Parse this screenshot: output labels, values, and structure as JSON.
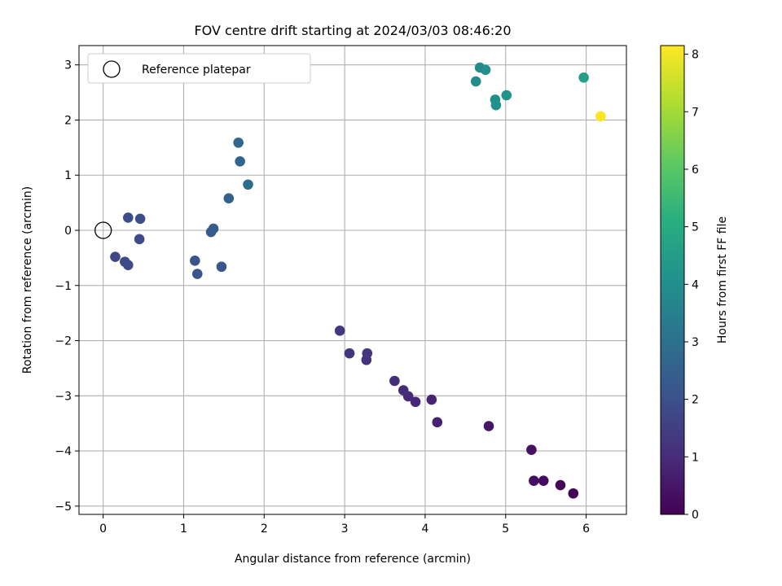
{
  "chart_data": {
    "type": "scatter",
    "title": "FOV centre drift starting at 2024/03/03 08:46:20",
    "xlabel": "Angular distance from reference (arcmin)",
    "ylabel": "Rotation from reference (arcmin)",
    "xlim": [
      -0.3,
      6.5
    ],
    "ylim": [
      -5.15,
      3.35
    ],
    "xticks": [
      0,
      1,
      2,
      3,
      4,
      5,
      6
    ],
    "yticks": [
      -5,
      -4,
      -3,
      -2,
      -1,
      0,
      1,
      2,
      3
    ],
    "grid": true,
    "legend": {
      "position": "top-left",
      "entries": [
        "Reference platepar"
      ]
    },
    "reference": {
      "x": 0,
      "y": 0,
      "label": "Reference platepar"
    },
    "colorbar": {
      "label": "Hours from first FF file",
      "range": [
        0,
        8.15
      ],
      "ticks": [
        0,
        1,
        2,
        3,
        4,
        5,
        6,
        7,
        8
      ],
      "colormap": "viridis"
    },
    "points": [
      {
        "x": 5.84,
        "y": -4.77,
        "h": 0.05
      },
      {
        "x": 5.68,
        "y": -4.62,
        "h": 0.15
      },
      {
        "x": 5.47,
        "y": -4.54,
        "h": 0.25
      },
      {
        "x": 5.35,
        "y": -4.54,
        "h": 0.3
      },
      {
        "x": 5.32,
        "y": -3.98,
        "h": 0.4
      },
      {
        "x": 4.79,
        "y": -3.55,
        "h": 0.5
      },
      {
        "x": 4.15,
        "y": -3.48,
        "h": 0.75
      },
      {
        "x": 4.08,
        "y": -3.07,
        "h": 0.8
      },
      {
        "x": 3.88,
        "y": -3.11,
        "h": 0.9
      },
      {
        "x": 3.79,
        "y": -3.01,
        "h": 0.95
      },
      {
        "x": 3.73,
        "y": -2.9,
        "h": 1.0
      },
      {
        "x": 3.62,
        "y": -2.73,
        "h": 1.05
      },
      {
        "x": 3.27,
        "y": -2.35,
        "h": 1.15
      },
      {
        "x": 3.28,
        "y": -2.23,
        "h": 1.2
      },
      {
        "x": 3.06,
        "y": -2.23,
        "h": 1.25
      },
      {
        "x": 2.94,
        "y": -1.82,
        "h": 1.3
      },
      {
        "x": 0.15,
        "y": -0.48,
        "h": 1.75
      },
      {
        "x": 0.27,
        "y": -0.57,
        "h": 1.8
      },
      {
        "x": 0.31,
        "y": -0.63,
        "h": 1.8
      },
      {
        "x": 0.45,
        "y": -0.16,
        "h": 1.85
      },
      {
        "x": 0.31,
        "y": 0.23,
        "h": 1.9
      },
      {
        "x": 0.46,
        "y": 0.21,
        "h": 1.95
      },
      {
        "x": 1.14,
        "y": -0.55,
        "h": 2.1
      },
      {
        "x": 1.17,
        "y": -0.79,
        "h": 2.15
      },
      {
        "x": 1.47,
        "y": -0.66,
        "h": 2.2
      },
      {
        "x": 1.34,
        "y": -0.03,
        "h": 2.3
      },
      {
        "x": 1.37,
        "y": 0.03,
        "h": 2.35
      },
      {
        "x": 1.56,
        "y": 0.58,
        "h": 2.55
      },
      {
        "x": 1.7,
        "y": 1.25,
        "h": 2.65
      },
      {
        "x": 1.68,
        "y": 1.59,
        "h": 2.7
      },
      {
        "x": 1.8,
        "y": 0.83,
        "h": 2.9
      },
      {
        "x": 4.63,
        "y": 2.7,
        "h": 3.9
      },
      {
        "x": 4.68,
        "y": 2.95,
        "h": 3.95
      },
      {
        "x": 4.75,
        "y": 2.91,
        "h": 4.0
      },
      {
        "x": 4.87,
        "y": 2.37,
        "h": 4.05
      },
      {
        "x": 4.88,
        "y": 2.27,
        "h": 4.1
      },
      {
        "x": 5.01,
        "y": 2.45,
        "h": 4.15
      },
      {
        "x": 5.97,
        "y": 2.77,
        "h": 4.55
      },
      {
        "x": 6.18,
        "y": 2.07,
        "h": 8.15
      }
    ]
  }
}
